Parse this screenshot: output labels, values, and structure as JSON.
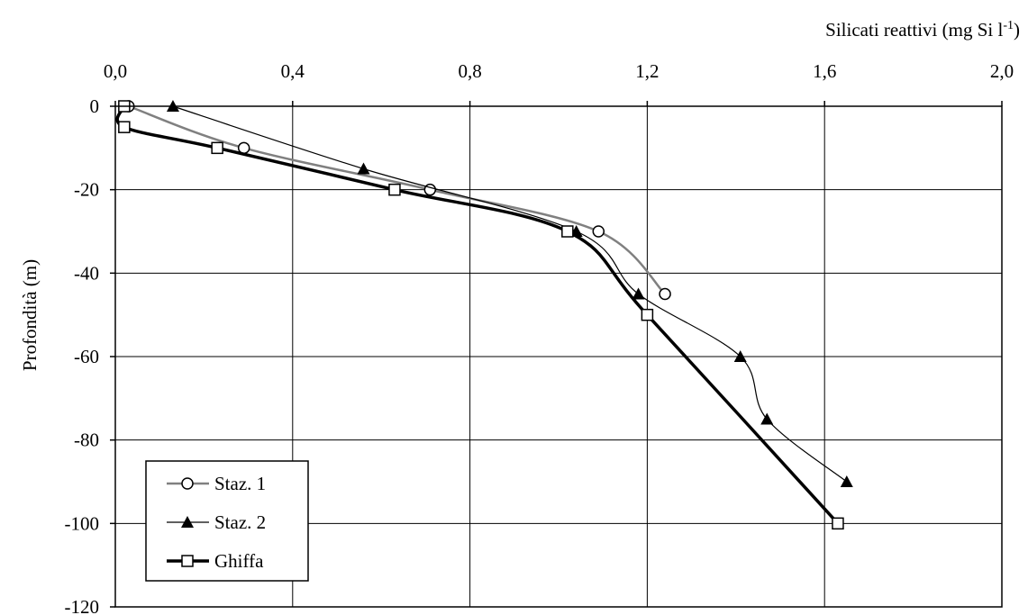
{
  "chart_data": {
    "type": "line",
    "title": "Silicati reattivi (mg Si l⁻¹)",
    "title_main": "Silicati reattivi (mg Si l",
    "title_sup": "-1",
    "title_close": ")",
    "xlabel": "Silicati reattivi (mg Si l-1)",
    "ylabel": "Profondità (m)",
    "xlim": [
      0.0,
      2.0
    ],
    "ylim": [
      -120,
      0
    ],
    "x_ticks": [
      "0,0",
      "0,4",
      "0,8",
      "1,2",
      "1,6",
      "2,0"
    ],
    "y_ticks": [
      "0",
      "-20",
      "-40",
      "-60",
      "-80",
      "-100",
      "-120"
    ],
    "x_axis_position": "top",
    "grid": true,
    "legend_position": "bottom-left",
    "series": [
      {
        "name": "Staz. 1",
        "marker": "circle-open",
        "color": "#808080",
        "points": [
          [
            0.03,
            0
          ],
          [
            0.29,
            -10
          ],
          [
            0.71,
            -20
          ],
          [
            1.09,
            -30
          ],
          [
            1.24,
            -45
          ]
        ]
      },
      {
        "name": "Staz. 2",
        "marker": "triangle-filled",
        "color": "#000000",
        "points": [
          [
            0.13,
            0
          ],
          [
            0.56,
            -15
          ],
          [
            1.04,
            -30
          ],
          [
            1.18,
            -45
          ],
          [
            1.41,
            -60
          ],
          [
            1.47,
            -75
          ],
          [
            1.65,
            -90
          ]
        ]
      },
      {
        "name": "Ghiffa",
        "marker": "square-open",
        "color": "#000000",
        "points": [
          [
            0.02,
            0
          ],
          [
            0.02,
            -5
          ],
          [
            0.23,
            -10
          ],
          [
            0.63,
            -20
          ],
          [
            1.02,
            -30
          ],
          [
            1.2,
            -50
          ],
          [
            1.63,
            -100
          ]
        ]
      }
    ]
  }
}
